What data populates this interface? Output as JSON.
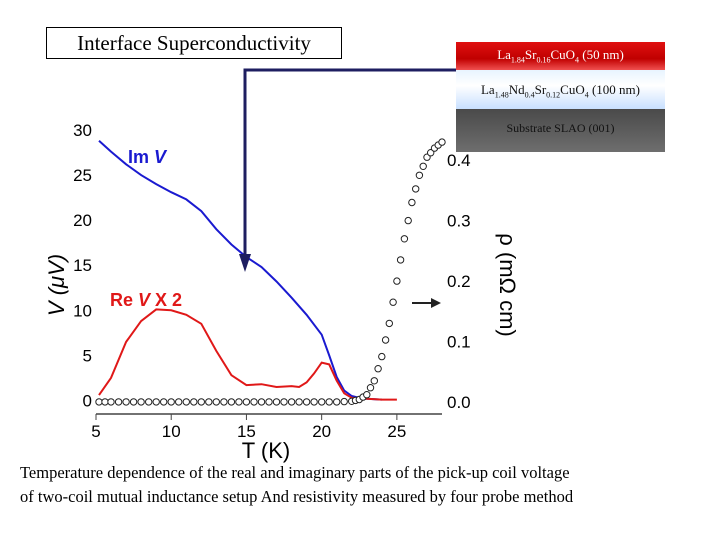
{
  "title": "Interface Superconductivity",
  "layers": [
    {
      "label": "La1.84Sr0.16CuO4 (50 nm)",
      "parts": [
        "La",
        "1.84",
        "Sr",
        "0.16",
        "CuO",
        "4",
        " (50 nm)"
      ]
    },
    {
      "label": "La1.48Nd0.4Sr0.12CuO4 (100 nm)",
      "parts": [
        "La",
        "1.48",
        "Nd",
        "0.4",
        "Sr",
        "0.12",
        "CuO",
        "4",
        " (100 nm)"
      ]
    },
    {
      "label": "Substrate SLAO (001)"
    }
  ],
  "caption": {
    "line1": "Temperature dependence of the real and imaginary parts of the pick-up coil voltage",
    "line2": "of  two-coil mutual inductance setup And resistivity measured by four probe method"
  },
  "colors": {
    "im": "#1a1ad0",
    "re": "#e01818",
    "rho": "#222222",
    "arrow": "#1e1e60"
  },
  "chart_data": {
    "type": "line",
    "xlabel": "T (K)",
    "ylabel": "V (μV)",
    "y2label": "ρ (mΩ cm)",
    "xlim": [
      5,
      28
    ],
    "ylim": [
      -1.5,
      30
    ],
    "y2lim": [
      -0.02,
      0.45
    ],
    "xticks": [
      "5",
      "10",
      "15",
      "20",
      "25"
    ],
    "yticks": [
      "0",
      "5",
      "10",
      "15",
      "20",
      "25",
      "30"
    ],
    "y2ticks": [
      "0.0",
      "0.1",
      "0.2",
      "0.3",
      "0.4"
    ],
    "series": [
      {
        "name": "Im V",
        "label_prefix": "Im ",
        "label_var": "V",
        "axis": "left",
        "x": [
          5.2,
          6,
          7,
          8,
          9,
          10,
          11,
          12,
          13,
          14,
          15,
          16,
          17,
          18,
          19,
          20,
          20.5,
          21,
          21.5,
          22,
          22.5,
          23,
          24
        ],
        "y": [
          28.8,
          27.6,
          26.2,
          25,
          24,
          23.1,
          22.3,
          21,
          19,
          17.3,
          15.9,
          14.8,
          13.2,
          11.4,
          9.5,
          7.3,
          5,
          2.6,
          1.1,
          0.5,
          0.3,
          0.2,
          0.1
        ]
      },
      {
        "name": "Re V X 2",
        "label_prefix": "Re ",
        "label_var": "V",
        "label_suffix": " X 2",
        "axis": "left",
        "x": [
          5.2,
          6,
          7,
          8,
          9,
          10,
          11,
          12,
          13,
          14,
          15,
          16,
          17,
          18,
          18.5,
          19,
          19.5,
          20,
          20.5,
          21,
          21.5,
          22,
          23,
          24,
          25
        ],
        "y": [
          0.6,
          2.5,
          6.5,
          8.8,
          10.1,
          10,
          9.5,
          8.5,
          5.5,
          2.8,
          1.7,
          1.8,
          1.5,
          1.6,
          1.5,
          2,
          3,
          4.2,
          4,
          2.2,
          0.8,
          0.3,
          0.2,
          0.1,
          0.1
        ]
      },
      {
        "name": "Resistivity",
        "axis": "right",
        "marker": "circle",
        "x": [
          5.2,
          6,
          7,
          8,
          9,
          10,
          11,
          12,
          13,
          14,
          15,
          16,
          17,
          18,
          19,
          20,
          21,
          22,
          22.5,
          23,
          23.5,
          24,
          24.5,
          25,
          25.5,
          26,
          26.5,
          27,
          27.5,
          28
        ],
        "y": [
          0,
          0,
          0,
          0,
          0,
          0,
          0,
          0,
          0,
          0,
          0,
          0,
          0,
          0,
          0,
          0,
          0,
          0.001,
          0.004,
          0.012,
          0.035,
          0.075,
          0.13,
          0.2,
          0.27,
          0.33,
          0.375,
          0.405,
          0.42,
          0.43
        ]
      }
    ]
  }
}
